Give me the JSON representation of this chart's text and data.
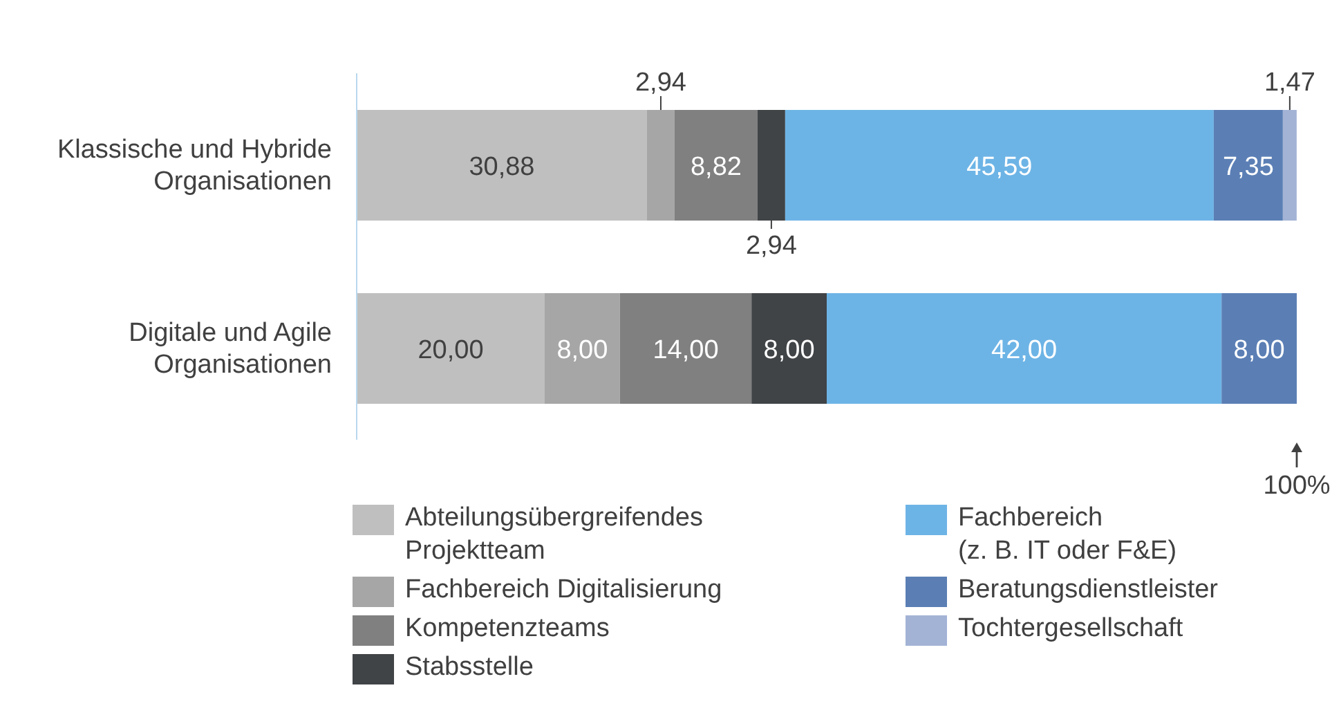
{
  "chart_data": {
    "type": "bar",
    "orientation": "horizontal",
    "stacked": true,
    "legend": "bottom",
    "categories": [
      "Klassische und Hybride Organisationen",
      "Digitale und Agile Organisationen"
    ],
    "series": [
      {
        "name": "Abteilungsübergreifendes Projektteam",
        "color": "#bfbfbf",
        "values": [
          30.88,
          20.0
        ],
        "value_labels": [
          "30,88",
          "20,00"
        ]
      },
      {
        "name": "Fachbereich Digitalisierung",
        "color": "#a6a6a6",
        "values": [
          2.94,
          8.0
        ],
        "value_labels": [
          "2,94",
          "8,00"
        ]
      },
      {
        "name": "Kompetenzteams",
        "color": "#808080",
        "values": [
          8.82,
          14.0
        ],
        "value_labels": [
          "8,82",
          "14,00"
        ]
      },
      {
        "name": "Stabsstelle",
        "color": "#404447",
        "values": [
          2.94,
          8.0
        ],
        "value_labels": [
          "2,94",
          "8,00"
        ]
      },
      {
        "name": "Fachbereich (z. B. IT oder F&E)",
        "color": "#6db4e6",
        "values": [
          45.59,
          42.0
        ],
        "value_labels": [
          "45,59",
          "42,00"
        ]
      },
      {
        "name": "Beratungsdienstleister",
        "color": "#5b7fb5",
        "values": [
          7.35,
          8.0
        ],
        "value_labels": [
          "7,35",
          "8,00"
        ]
      },
      {
        "name": "Tochtergesellschaft",
        "color": "#a3b3d6",
        "values": [
          1.47,
          null
        ],
        "value_labels": [
          "1,47",
          null
        ]
      }
    ],
    "annotations": [
      "100%"
    ]
  }
}
